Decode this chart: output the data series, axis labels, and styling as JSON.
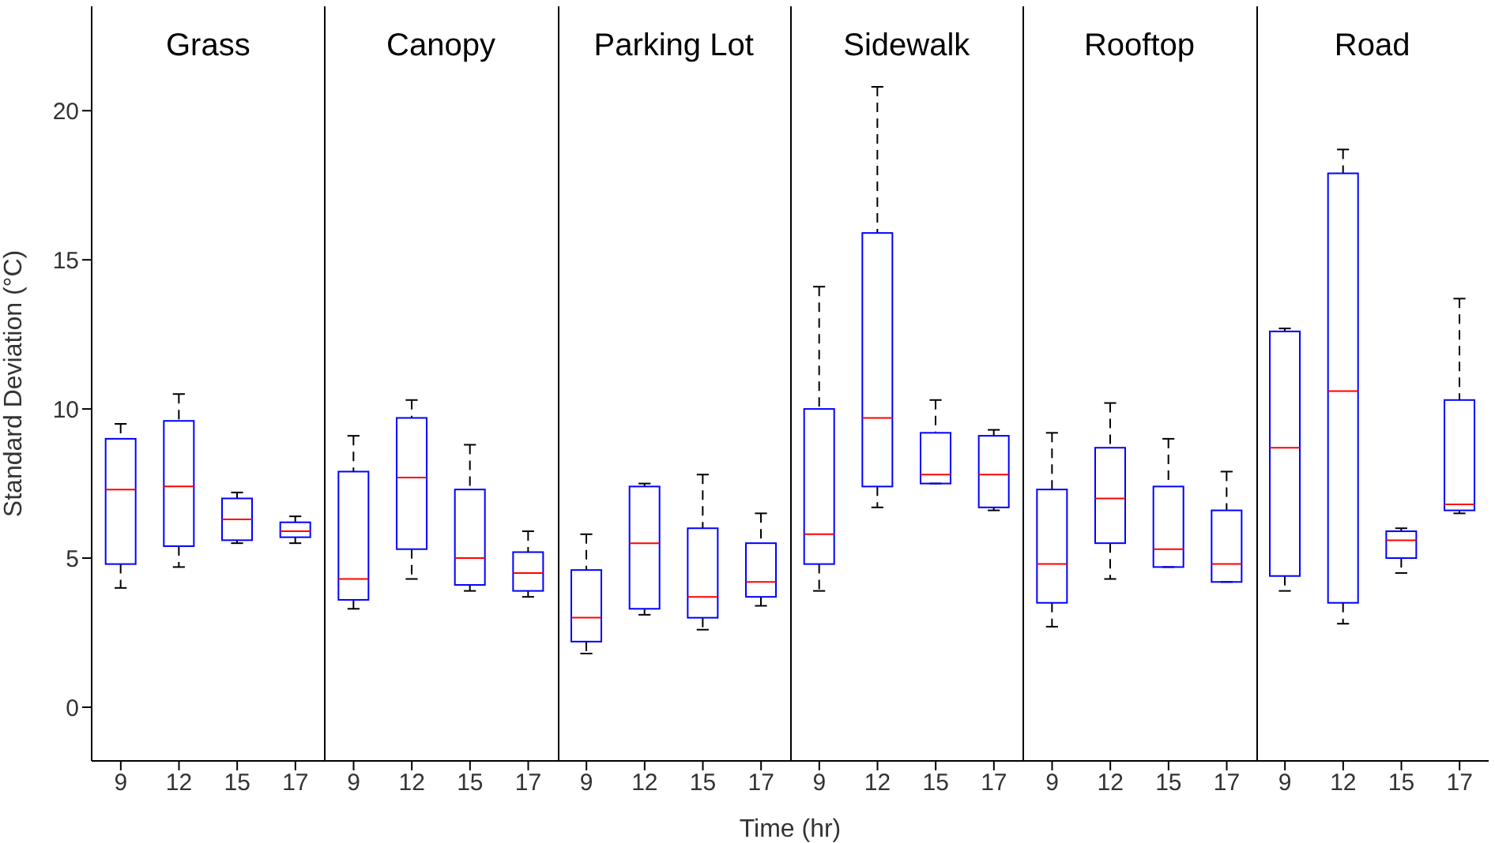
{
  "chart_data": {
    "type": "box",
    "xlabel": "Time (hr)",
    "ylabel": "Standard Deviation (°C)",
    "categories": [
      "9",
      "12",
      "15",
      "17",
      "9",
      "12",
      "15",
      "17",
      "9",
      "12",
      "15",
      "17",
      "9",
      "12",
      "15",
      "17",
      "9",
      "12",
      "15",
      "17",
      "9",
      "12",
      "15",
      "17"
    ],
    "annotations": [
      "Grass",
      "Canopy",
      "Parking Lot",
      "Sidewalk",
      "Rooftop",
      "Road"
    ],
    "ylim": [
      -1.8,
      23.5
    ],
    "yticks": [
      0,
      5,
      10,
      15,
      20
    ],
    "line_style": "dashed",
    "series": [
      {
        "color": "#0000ff",
        "boxes": [
          {
            "low": 4.0,
            "q1": 4.8,
            "median": 7.3,
            "q3": 9.0,
            "high": 9.5
          },
          {
            "low": 4.7,
            "q1": 5.4,
            "median": 7.4,
            "q3": 9.6,
            "high": 10.5
          },
          {
            "low": 5.5,
            "q1": 5.6,
            "median": 6.3,
            "q3": 7.0,
            "high": 7.2
          },
          {
            "low": 5.5,
            "q1": 5.7,
            "median": 5.9,
            "q3": 6.2,
            "high": 6.4
          },
          {
            "low": 3.3,
            "q1": 3.6,
            "median": 4.3,
            "q3": 7.9,
            "high": 9.1
          },
          {
            "low": 4.3,
            "q1": 5.3,
            "median": 7.7,
            "q3": 9.7,
            "high": 10.3
          },
          {
            "low": 3.9,
            "q1": 4.1,
            "median": 5.0,
            "q3": 7.3,
            "high": 8.8
          },
          {
            "low": 3.7,
            "q1": 3.9,
            "median": 4.5,
            "q3": 5.2,
            "high": 5.9
          },
          {
            "low": 1.8,
            "q1": 2.2,
            "median": 3.0,
            "q3": 4.6,
            "high": 5.8
          },
          {
            "low": 3.1,
            "q1": 3.3,
            "median": 5.5,
            "q3": 7.4,
            "high": 7.5
          },
          {
            "low": 2.6,
            "q1": 3.0,
            "median": 3.7,
            "q3": 6.0,
            "high": 7.8
          },
          {
            "low": 3.4,
            "q1": 3.7,
            "median": 4.2,
            "q3": 5.5,
            "high": 6.5
          },
          {
            "low": 3.9,
            "q1": 4.8,
            "median": 5.8,
            "q3": 10.0,
            "high": 14.1
          },
          {
            "low": 6.7,
            "q1": 7.4,
            "median": 9.7,
            "q3": 15.9,
            "high": 20.8
          },
          {
            "low": 7.5,
            "q1": 7.5,
            "median": 7.8,
            "q3": 9.2,
            "high": 10.3
          },
          {
            "low": 6.6,
            "q1": 6.7,
            "median": 7.8,
            "q3": 9.1,
            "high": 9.3
          },
          {
            "low": 2.7,
            "q1": 3.5,
            "median": 4.8,
            "q3": 7.3,
            "high": 9.2
          },
          {
            "low": 4.3,
            "q1": 5.5,
            "median": 7.0,
            "q3": 8.7,
            "high": 10.2
          },
          {
            "low": 4.7,
            "q1": 4.7,
            "median": 5.3,
            "q3": 7.4,
            "high": 9.0
          },
          {
            "low": 4.2,
            "q1": 4.2,
            "median": 4.8,
            "q3": 6.6,
            "high": 7.9
          },
          {
            "low": 3.9,
            "q1": 4.4,
            "median": 8.7,
            "q3": 12.6,
            "high": 12.7
          },
          {
            "low": 2.8,
            "q1": 3.5,
            "median": 10.6,
            "q3": 17.9,
            "high": 18.7
          },
          {
            "low": 4.5,
            "q1": 5.0,
            "median": 5.6,
            "q3": 5.9,
            "high": 6.0
          },
          {
            "low": 6.5,
            "q1": 6.6,
            "median": 6.8,
            "q3": 10.3,
            "high": 13.7
          }
        ]
      }
    ]
  }
}
